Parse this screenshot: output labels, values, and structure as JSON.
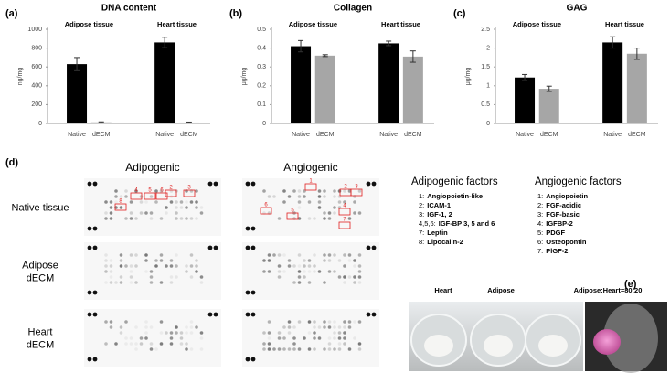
{
  "chart_data": [
    {
      "type": "bar",
      "panel": "(a)",
      "title": "DNA content",
      "y_label": "ng/mg",
      "groups": [
        "Adipose tissue",
        "Heart tissue"
      ],
      "categories": [
        "Native",
        "dECM",
        "Native",
        "dECM"
      ],
      "values": [
        630,
        12,
        860,
        10
      ],
      "errors": [
        70,
        5,
        55,
        5
      ],
      "colors": [
        "#000000",
        "#a6a6a6",
        "#000000",
        "#a6a6a6"
      ],
      "ylim": [
        0,
        1000
      ],
      "yticks": [
        0,
        200,
        400,
        600,
        800,
        1000
      ]
    },
    {
      "type": "bar",
      "panel": "(b)",
      "title": "Collagen",
      "y_label": "μg/mg",
      "groups": [
        "Adipose tissue",
        "Heart tissue"
      ],
      "categories": [
        "Native",
        "dECM",
        "Native",
        "dECM"
      ],
      "values": [
        0.41,
        0.36,
        0.425,
        0.355
      ],
      "errors": [
        0.03,
        0.005,
        0.012,
        0.03
      ],
      "colors": [
        "#000000",
        "#a6a6a6",
        "#000000",
        "#a6a6a6"
      ],
      "ylim": [
        0,
        0.5
      ],
      "yticks": [
        0,
        0.1,
        0.2,
        0.3,
        0.4,
        0.5
      ]
    },
    {
      "type": "bar",
      "panel": "(c)",
      "title": "GAG",
      "y_label": "μg/mg",
      "groups": [
        "Adipose tissue",
        "Heart tissue"
      ],
      "categories": [
        "Native",
        "dECM",
        "Native",
        "dECM"
      ],
      "values": [
        1.22,
        0.92,
        2.15,
        1.85
      ],
      "errors": [
        0.08,
        0.07,
        0.15,
        0.15
      ],
      "colors": [
        "#000000",
        "#a6a6a6",
        "#000000",
        "#a6a6a6"
      ],
      "ylim": [
        0,
        2.5
      ],
      "yticks": [
        0,
        0.5,
        1,
        1.5,
        2,
        2.5
      ]
    }
  ],
  "array": {
    "panel": "(d)",
    "columns": [
      "Adipogenic",
      "Angiogenic"
    ],
    "rows": [
      "Native tissue",
      "Adipose\ndECM",
      "Heart\ndECM"
    ],
    "adipogenic_marks": [
      "2",
      "3",
      "4",
      "5",
      "6",
      "8"
    ],
    "angiogenic_marks": [
      "1",
      "2",
      "3",
      "4",
      "5",
      "6",
      "7"
    ]
  },
  "factors": [
    {
      "title": "Adipogenic factors",
      "items": [
        {
          "num": "1:",
          "name": "Angiopoietin-like"
        },
        {
          "num": "2:",
          "name": "ICAM-1"
        },
        {
          "num": "3:",
          "name": "IGF-1, 2"
        },
        {
          "num": "4,5,6:",
          "name": "IGF-BP 3, 5 and 6"
        },
        {
          "num": "7:",
          "name": "Leptin"
        },
        {
          "num": "8:",
          "name": "Lipocalin-2"
        }
      ]
    },
    {
      "title": "Angiogenic factors",
      "items": [
        {
          "num": "1:",
          "name": "Angiopoietin"
        },
        {
          "num": "2:",
          "name": "FGF-acidic"
        },
        {
          "num": "3:",
          "name": "FGF-basic"
        },
        {
          "num": "4:",
          "name": "IGFBP-2"
        },
        {
          "num": "5:",
          "name": "PDGF"
        },
        {
          "num": "6:",
          "name": "Osteopontin"
        },
        {
          "num": "7:",
          "name": "PlGF-2"
        }
      ]
    }
  ],
  "photo": {
    "panel": "(e)",
    "captions": [
      "Heart",
      "Adipose",
      "Adipose:Heart=80:20"
    ]
  }
}
